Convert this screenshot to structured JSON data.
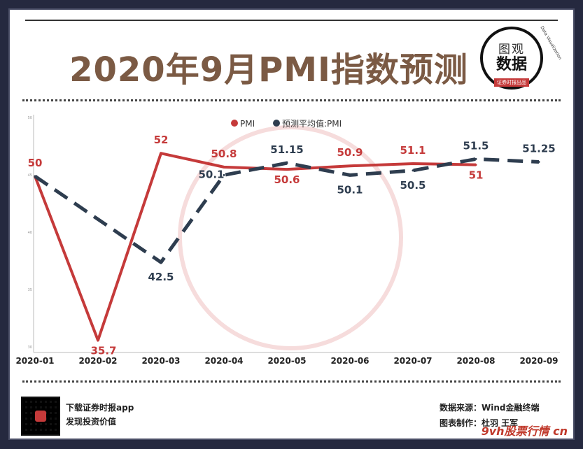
{
  "header": {
    "title": "2020年9月PMI指数预测",
    "logo_line1": "图观",
    "logo_line2": "数据",
    "logo_line3": "证券时报出品",
    "logo_arc": "Data Visualization"
  },
  "chart_data": {
    "type": "line",
    "x": [
      "2020-01",
      "2020-02",
      "2020-03",
      "2020-04",
      "2020-05",
      "2020-06",
      "2020-07",
      "2020-08",
      "2020-09"
    ],
    "ylim": [
      35,
      55
    ],
    "yticks": [
      "50",
      "45",
      "40",
      "35",
      "30"
    ],
    "legend_position": "top-center",
    "series": [
      {
        "name": "PMI",
        "color": "#c53a3a",
        "style": "solid",
        "values": [
          50,
          35.7,
          52,
          50.8,
          50.6,
          50.9,
          51.1,
          51,
          null
        ],
        "labels": [
          "50",
          "35.7",
          "52",
          "50.8",
          "50.6",
          "50.9",
          "51.1",
          "51",
          ""
        ]
      },
      {
        "name": "预测平均值:PMI",
        "color": "#2e3d4f",
        "style": "dashed",
        "values": [
          50,
          null,
          42.5,
          50.1,
          51.15,
          50.1,
          50.5,
          51.5,
          51.25
        ],
        "labels": [
          "",
          "",
          "42.5",
          "50.1",
          "51.15",
          "50.1",
          "50.5",
          "51.5",
          "51.25"
        ]
      }
    ]
  },
  "footer": {
    "left_line1": "下载证券时报app",
    "left_line2": "发现投资价值",
    "source": "数据来源：Wind金融终端",
    "credit": "图表制作：杜羽 王军",
    "watermark": "9vh股票行情 cn"
  }
}
